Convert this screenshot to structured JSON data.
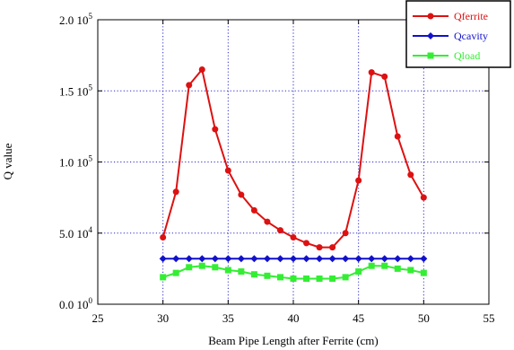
{
  "chart_data": {
    "type": "line",
    "xlabel": "Beam Pipe Length after Ferrite (cm)",
    "ylabel": "Q value",
    "xlim": [
      25,
      55
    ],
    "ylim": [
      0,
      200000
    ],
    "x_ticks": [
      {
        "value": 25,
        "label": "25"
      },
      {
        "value": 30,
        "label": "30"
      },
      {
        "value": 35,
        "label": "35"
      },
      {
        "value": 40,
        "label": "40"
      },
      {
        "value": 45,
        "label": "45"
      },
      {
        "value": 50,
        "label": "50"
      },
      {
        "value": 55,
        "label": "55"
      }
    ],
    "y_ticks": [
      {
        "value": 0,
        "mantissa": "0.0 10",
        "exp": "0"
      },
      {
        "value": 50000,
        "mantissa": "5.0 10",
        "exp": "4"
      },
      {
        "value": 100000,
        "mantissa": "1.0 10",
        "exp": "5"
      },
      {
        "value": 150000,
        "mantissa": "1.5 10",
        "exp": "5"
      },
      {
        "value": 200000,
        "mantissa": "2.0 10",
        "exp": "5"
      }
    ],
    "grid": true,
    "legend_position": "top-right",
    "x": [
      30,
      31,
      32,
      33,
      34,
      35,
      36,
      37,
      38,
      39,
      40,
      41,
      42,
      43,
      44,
      45,
      46,
      47,
      48,
      49,
      50
    ],
    "series": [
      {
        "name": "Qferrite",
        "color": "#dd1111",
        "marker": "circle",
        "values": [
          47000,
          79000,
          154000,
          165000,
          123000,
          94000,
          77000,
          66000,
          58000,
          52000,
          47000,
          43000,
          40000,
          40000,
          50000,
          87000,
          163000,
          160000,
          118000,
          91000,
          75000
        ]
      },
      {
        "name": "Qcavity",
        "color": "#1111cc",
        "marker": "diamond",
        "values": [
          32000,
          32000,
          32000,
          32000,
          32000,
          32000,
          32000,
          32000,
          32000,
          32000,
          32000,
          32000,
          32000,
          32000,
          32000,
          32000,
          32000,
          32000,
          32000,
          32000,
          32000
        ]
      },
      {
        "name": "Qload",
        "color": "#33ee33",
        "marker": "square",
        "values": [
          19000,
          22000,
          26000,
          27000,
          26000,
          24000,
          23000,
          21000,
          20000,
          19000,
          18000,
          18000,
          18000,
          18000,
          19000,
          23000,
          27000,
          27000,
          25000,
          24000,
          22000
        ]
      }
    ]
  }
}
